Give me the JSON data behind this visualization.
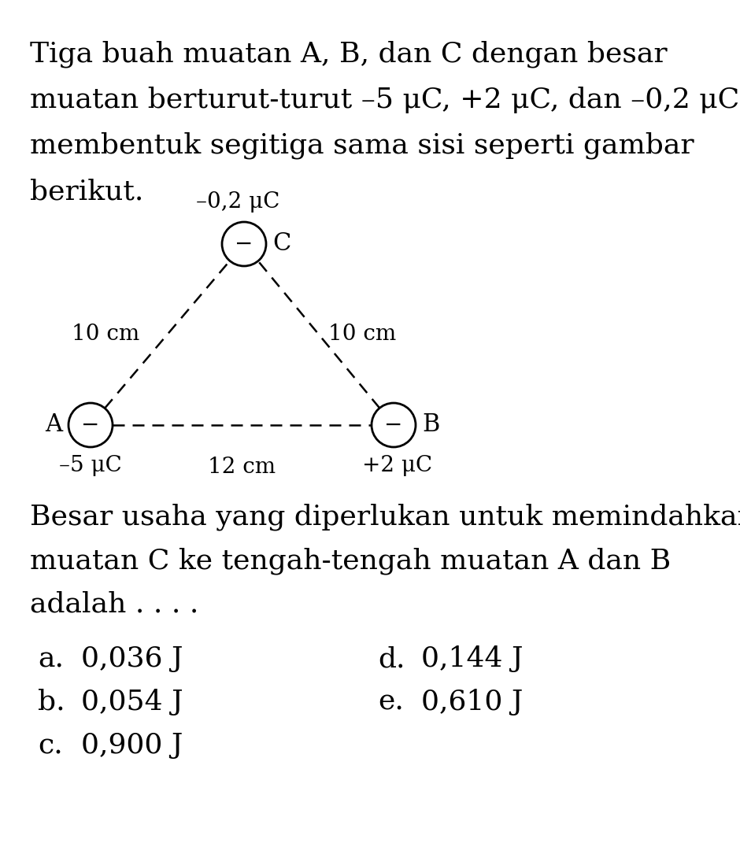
{
  "title_lines": [
    "Tiga buah muatan A, B, dan C dengan besar",
    "muatan berturut-turut –5 μC, +2 μC, dan –0,2 μC",
    "membentuk segitiga sama sisi seperti gambar",
    "berikut."
  ],
  "question_lines": [
    "Besar usaha yang diperlukan untuk memindahkan",
    "muatan C ke tengah-tengah muatan A dan B",
    "adalah . . . ."
  ],
  "options": [
    [
      "a.",
      "0,036 J",
      "d.",
      "0,144 J"
    ],
    [
      "b.",
      "0,054 J",
      "e.",
      "0,610 J"
    ],
    [
      "c.",
      "0,900 J",
      "",
      ""
    ]
  ],
  "charge_A": "–5 μC",
  "charge_B": "+2 μC",
  "charge_C": "–0,2 μC",
  "side_AC": "10 cm",
  "side_BC": "10 cm",
  "side_AB": "12 cm",
  "sign_minus": "−",
  "bg_color": "#ffffff",
  "text_color": "#000000",
  "line_color": "#000000",
  "title_fontsize": 26,
  "question_fontsize": 26,
  "option_fontsize": 26,
  "diagram_fontsize": 20,
  "sign_fontsize": 20
}
